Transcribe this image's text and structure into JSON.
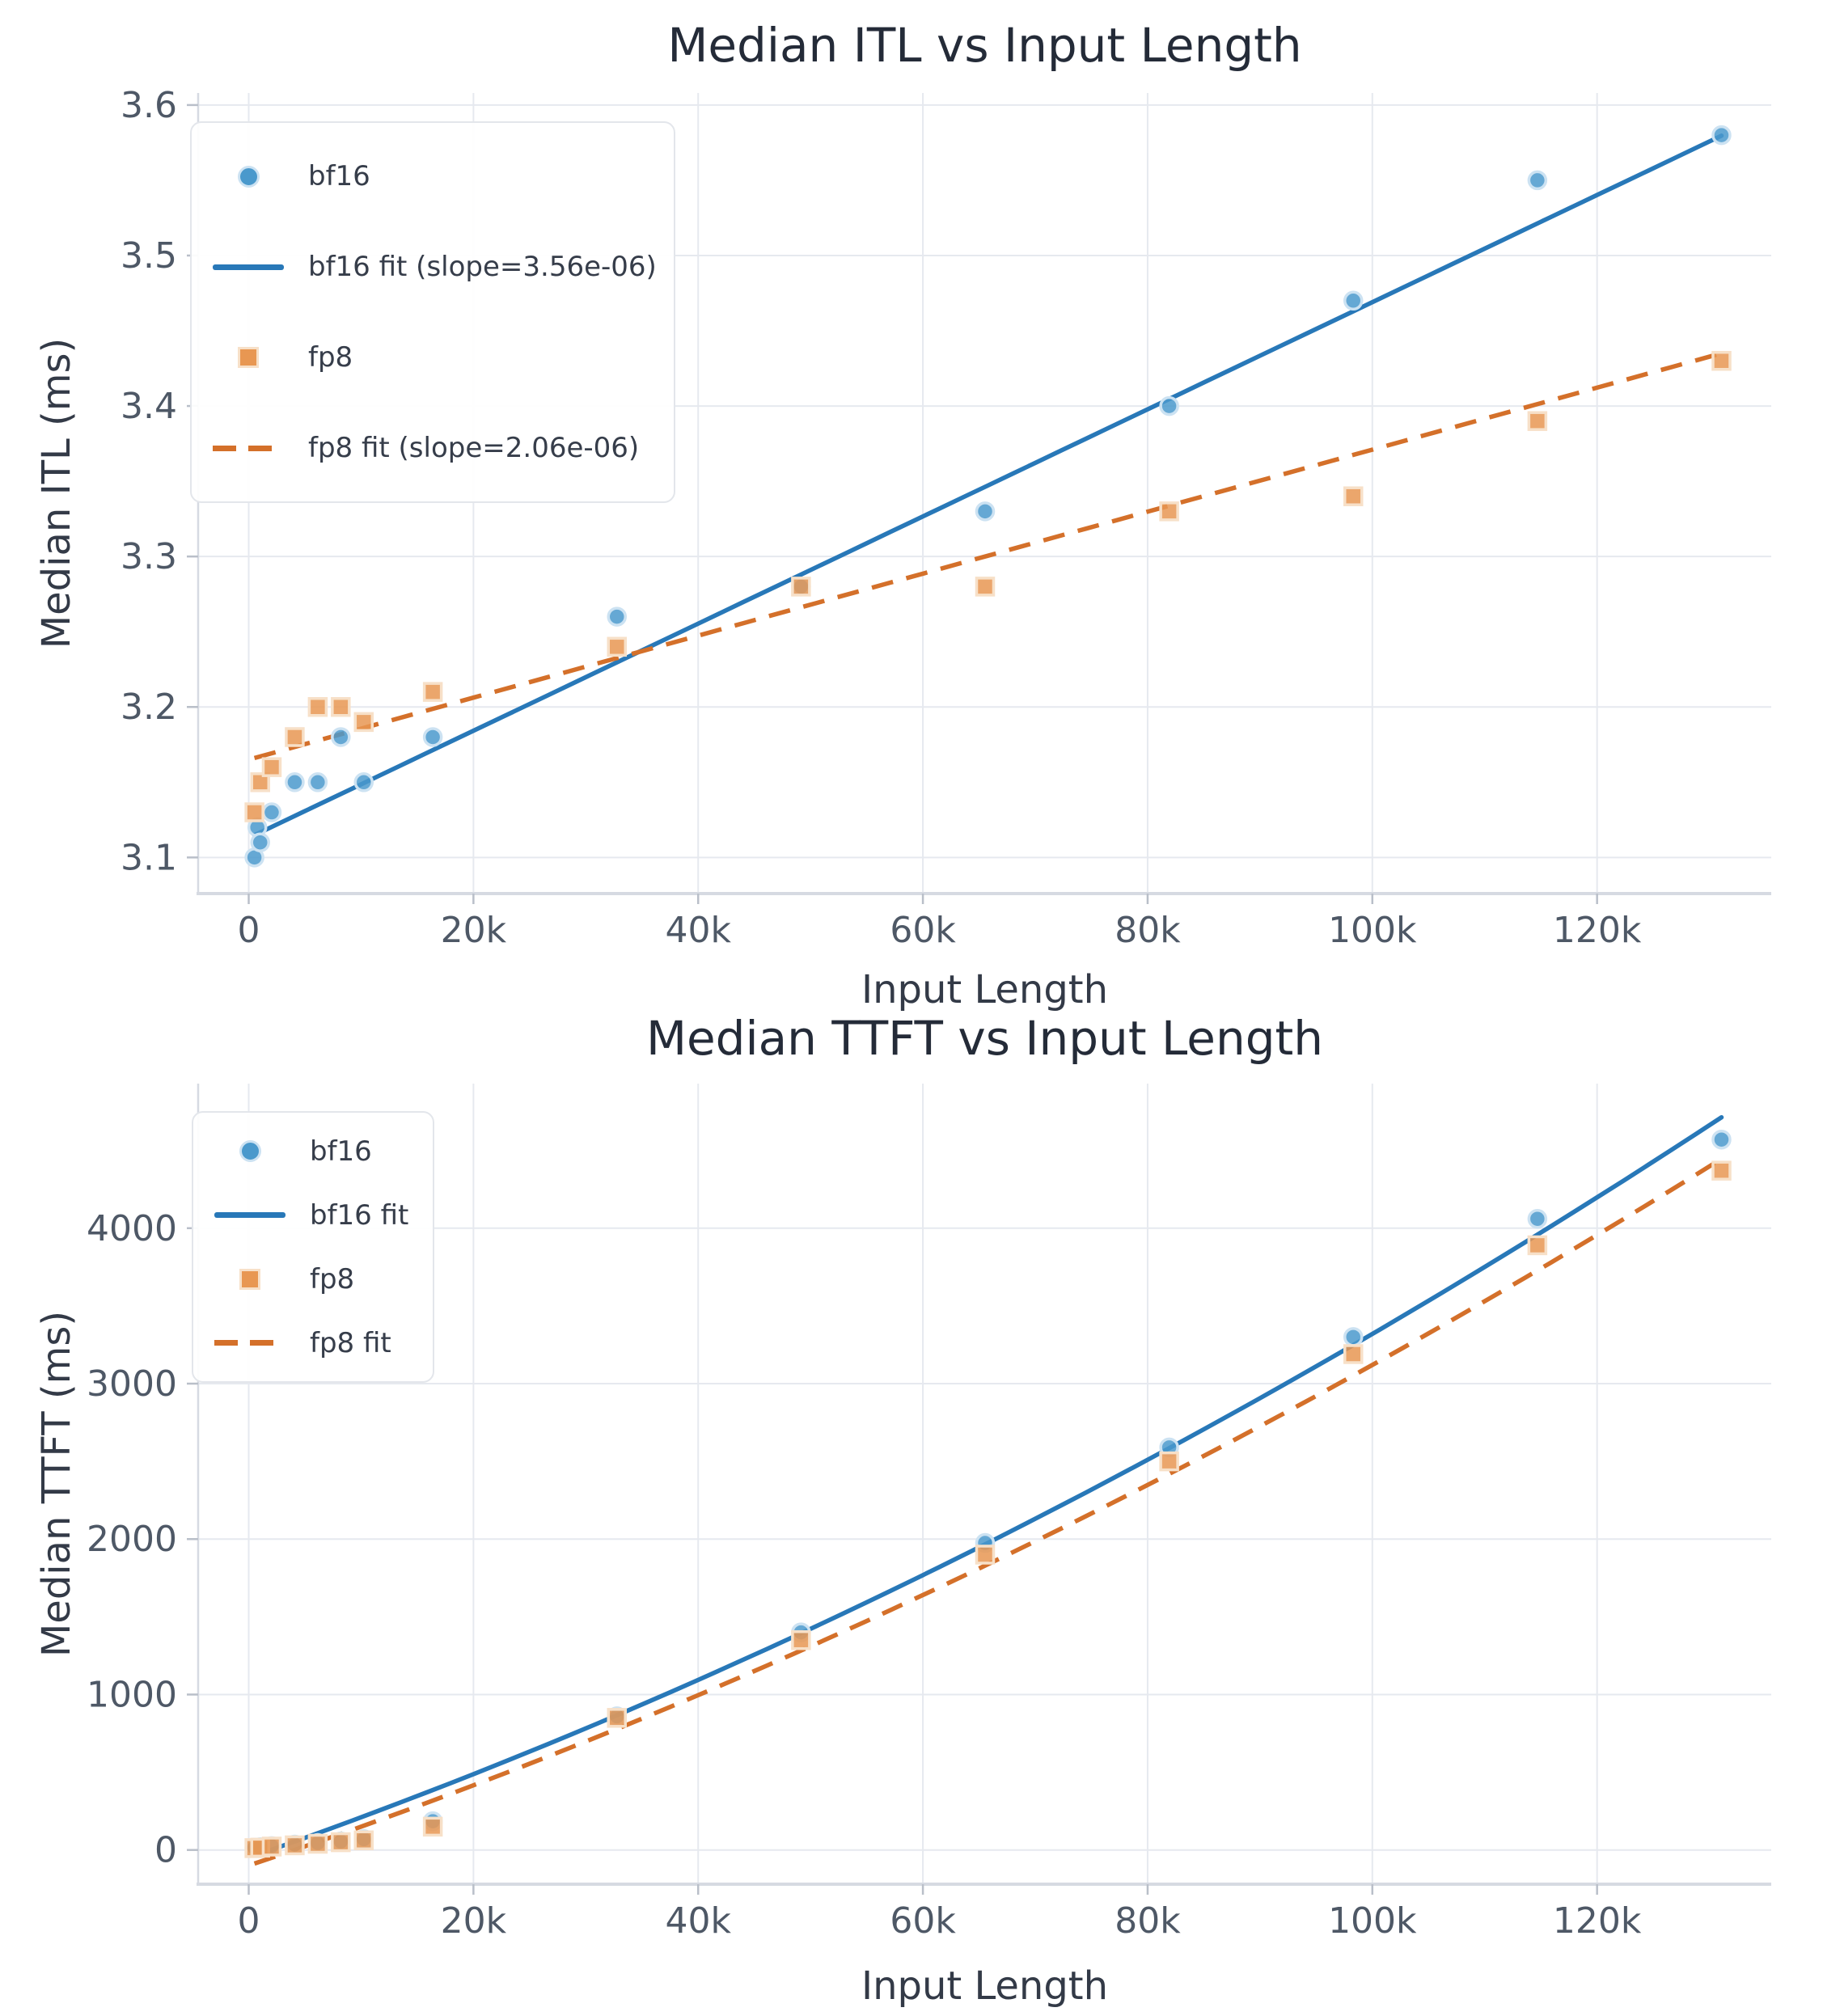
{
  "colors": {
    "background": "#ffffff",
    "grid": "#e6e9ef",
    "spine": "#d6dae2",
    "tick_mark": "#b9bfc9",
    "tick_label": "#4e5866",
    "axis_label": "#333a47",
    "title": "#242b38",
    "legend_border": "#e3e6eb",
    "bf16_line": "#2878b8",
    "bf16_marker": "#4a99cc",
    "fp8_line": "#d4702a",
    "fp8_marker": "#e89752"
  },
  "chart_data": [
    {
      "type": "scatter",
      "title": "Median ITL vs Input Length",
      "xlabel": "Input Length",
      "ylabel": "Median ITL (ms)",
      "xlim": [
        -4500,
        135500
      ],
      "ylim": [
        3.076,
        3.608
      ],
      "x_ticks": [
        0,
        20000,
        40000,
        60000,
        80000,
        100000,
        120000
      ],
      "x_tick_labels": [
        "0",
        "20k",
        "40k",
        "60k",
        "80k",
        "100k",
        "120k"
      ],
      "y_ticks": [
        3.1,
        3.2,
        3.3,
        3.4,
        3.5,
        3.6
      ],
      "y_tick_labels": [
        "3.1",
        "3.2",
        "3.3",
        "3.4",
        "3.5",
        "3.6"
      ],
      "grid": true,
      "legend_position": "upper left",
      "series": [
        {
          "name": "bf16",
          "kind": "scatter",
          "marker": "circle",
          "color": "#4a99cc",
          "edge_color": "#cce2f2",
          "points": [
            [
              512,
              3.1
            ],
            [
              768,
              3.12
            ],
            [
              1024,
              3.11
            ],
            [
              2048,
              3.13
            ],
            [
              4096,
              3.15
            ],
            [
              6144,
              3.15
            ],
            [
              8192,
              3.18
            ],
            [
              10240,
              3.15
            ],
            [
              16384,
              3.18
            ],
            [
              32768,
              3.26
            ],
            [
              49152,
              3.28
            ],
            [
              65536,
              3.33
            ],
            [
              81920,
              3.4
            ],
            [
              98304,
              3.47
            ],
            [
              114688,
              3.55
            ],
            [
              131072,
              3.58
            ]
          ]
        },
        {
          "name": "bf16 fit (slope=3.56e-06)",
          "kind": "fit",
          "style": "solid",
          "color": "#2878b8",
          "fit": {
            "type": "linear",
            "slope": 3.56e-06,
            "intercept": 3.113
          },
          "x_range": [
            512,
            131072
          ]
        },
        {
          "name": "fp8",
          "kind": "scatter",
          "marker": "square",
          "color": "#e89752",
          "edge_color": "#f7e0c8",
          "points": [
            [
              512,
              3.13
            ],
            [
              1024,
              3.15
            ],
            [
              2048,
              3.16
            ],
            [
              4096,
              3.18
            ],
            [
              6144,
              3.2
            ],
            [
              8192,
              3.2
            ],
            [
              10240,
              3.19
            ],
            [
              16384,
              3.21
            ],
            [
              32768,
              3.24
            ],
            [
              49152,
              3.28
            ],
            [
              65536,
              3.28
            ],
            [
              81920,
              3.33
            ],
            [
              98304,
              3.34
            ],
            [
              114688,
              3.39
            ],
            [
              131072,
              3.43
            ]
          ]
        },
        {
          "name": "fp8 fit (slope=2.06e-06)",
          "kind": "fit",
          "style": "dashed",
          "color": "#d4702a",
          "fit": {
            "type": "linear",
            "slope": 2.06e-06,
            "intercept": 3.165
          },
          "x_range": [
            512,
            131072
          ]
        }
      ]
    },
    {
      "type": "scatter",
      "title": "Median TTFT vs Input Length",
      "xlabel": "Input Length",
      "ylabel": "Median TTFT (ms)",
      "xlim": [
        -4500,
        135500
      ],
      "ylim": [
        -220,
        4930
      ],
      "x_ticks": [
        0,
        20000,
        40000,
        60000,
        80000,
        100000,
        120000
      ],
      "x_tick_labels": [
        "0",
        "20k",
        "40k",
        "60k",
        "80k",
        "100k",
        "120k"
      ],
      "y_ticks": [
        0,
        1000,
        2000,
        3000,
        4000
      ],
      "y_tick_labels": [
        "0",
        "1000",
        "2000",
        "3000",
        "4000"
      ],
      "grid": true,
      "legend_position": "upper left",
      "series": [
        {
          "name": "bf16",
          "kind": "scatter",
          "marker": "circle",
          "color": "#4a99cc",
          "edge_color": "#cce2f2",
          "points": [
            [
              512,
              15
            ],
            [
              1024,
              18
            ],
            [
              2048,
              25
            ],
            [
              4096,
              35
            ],
            [
              6144,
              45
            ],
            [
              8192,
              55
            ],
            [
              10240,
              70
            ],
            [
              16384,
              185
            ],
            [
              32768,
              860
            ],
            [
              49152,
              1400
            ],
            [
              65536,
              1975
            ],
            [
              81920,
              2590
            ],
            [
              98304,
              3300
            ],
            [
              114688,
              4060
            ],
            [
              131072,
              4570
            ]
          ]
        },
        {
          "name": "bf16 fit",
          "kind": "fit",
          "style": "solid",
          "color": "#2878b8",
          "fit": {
            "type": "quadratic",
            "a": 8.5e-08,
            "b": 0.0252,
            "c": -50
          },
          "x_range": [
            512,
            131072
          ]
        },
        {
          "name": "fp8",
          "kind": "scatter",
          "marker": "square",
          "color": "#e89752",
          "edge_color": "#f7e0c8",
          "points": [
            [
              512,
              12
            ],
            [
              1024,
              15
            ],
            [
              2048,
              22
            ],
            [
              4096,
              30
            ],
            [
              6144,
              40
            ],
            [
              8192,
              50
            ],
            [
              10240,
              62
            ],
            [
              16384,
              150
            ],
            [
              32768,
              850
            ],
            [
              49152,
              1350
            ],
            [
              65536,
              1900
            ],
            [
              81920,
              2500
            ],
            [
              98304,
              3190
            ],
            [
              114688,
              3890
            ],
            [
              131072,
              4370
            ]
          ]
        },
        {
          "name": "fp8 fit",
          "kind": "fit",
          "style": "dashed",
          "color": "#d4702a",
          "fit": {
            "type": "quadratic",
            "a": 8e-08,
            "b": 0.0242,
            "c": -100
          },
          "x_range": [
            512,
            131072
          ]
        }
      ]
    }
  ]
}
